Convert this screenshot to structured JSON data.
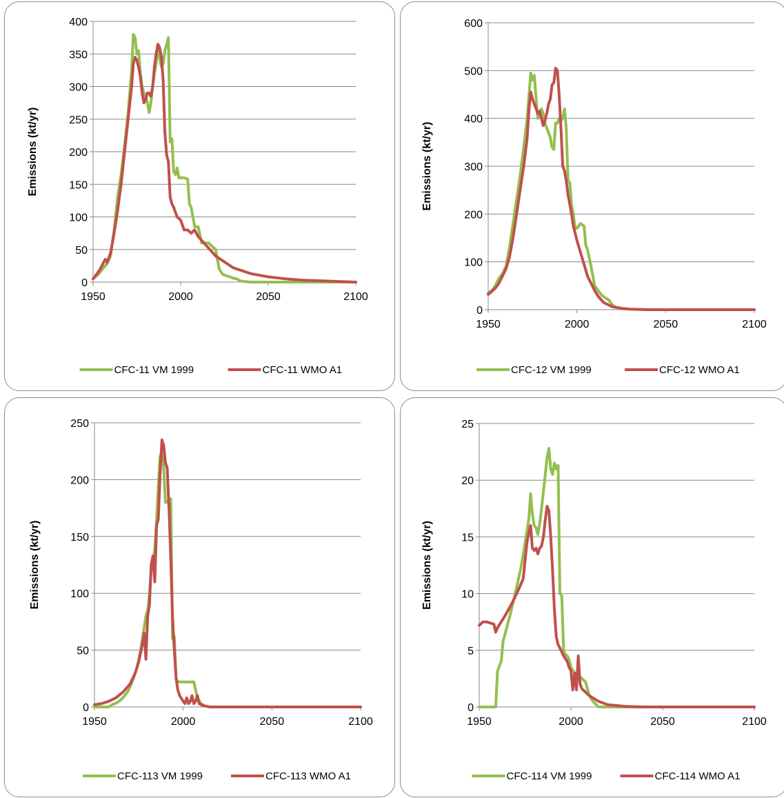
{
  "colors": {
    "green": "#93bf4f",
    "red": "#c0504d",
    "grid": "#878787",
    "axis": "#878787"
  },
  "chart_data": [
    {
      "type": "line",
      "ylabel": "Emissions (kt/yr)",
      "xlim": [
        1950,
        2100
      ],
      "ylim": [
        0,
        400
      ],
      "x_ticks": [
        "1950",
        "2000",
        "2050",
        "2100"
      ],
      "y_ticks": [
        "0",
        "50",
        "100",
        "150",
        "200",
        "250",
        "300",
        "350",
        "400"
      ],
      "grid": true,
      "legend": "bottom",
      "series": [
        {
          "name": "CFC-11 VM 1999",
          "color": "#93bf4f",
          "x": [
            1950,
            1953,
            1956,
            1958,
            1960,
            1962,
            1964,
            1966,
            1968,
            1970,
            1972,
            1973,
            1974,
            1975,
            1976,
            1977,
            1978,
            1979,
            1980,
            1981,
            1982,
            1983,
            1984,
            1985,
            1986,
            1987,
            1988,
            1989,
            1990,
            1991,
            1992,
            1993,
            1994,
            1995,
            1996,
            1997,
            1998,
            1999,
            2000,
            2002,
            2004,
            2005,
            2006,
            2008,
            2010,
            2012,
            2014,
            2016,
            2018,
            2020,
            2022,
            2024,
            2026,
            2028,
            2030,
            2032,
            2034,
            2036,
            2040,
            2060,
            2080,
            2100
          ],
          "y": [
            5,
            12,
            22,
            28,
            40,
            80,
            130,
            165,
            210,
            260,
            325,
            380,
            375,
            350,
            355,
            320,
            300,
            290,
            285,
            275,
            260,
            275,
            300,
            320,
            335,
            355,
            345,
            330,
            335,
            355,
            365,
            375,
            215,
            220,
            170,
            165,
            175,
            160,
            160,
            160,
            158,
            120,
            115,
            85,
            85,
            60,
            60,
            60,
            55,
            50,
            20,
            12,
            10,
            8,
            6,
            5,
            2,
            1,
            0,
            0,
            0,
            0
          ]
        },
        {
          "name": "CFC-11 WMO A1",
          "color": "#c0504d",
          "x": [
            1950,
            1952,
            1954,
            1956,
            1957,
            1958,
            1960,
            1962,
            1964,
            1966,
            1968,
            1970,
            1972,
            1973,
            1974,
            1975,
            1976,
            1977,
            1978,
            1979,
            1980,
            1981,
            1982,
            1983,
            1984,
            1985,
            1986,
            1987,
            1988,
            1989,
            1990,
            1991,
            1992,
            1993,
            1994,
            1995,
            1996,
            1998,
            2000,
            2002,
            2004,
            2006,
            2008,
            2010,
            2015,
            2020,
            2030,
            2040,
            2050,
            2060,
            2070,
            2080,
            2090,
            2100
          ],
          "y": [
            5,
            12,
            20,
            30,
            35,
            30,
            45,
            75,
            110,
            150,
            200,
            250,
            300,
            335,
            345,
            340,
            330,
            315,
            290,
            275,
            280,
            290,
            290,
            285,
            300,
            330,
            350,
            365,
            360,
            345,
            310,
            230,
            195,
            185,
            130,
            120,
            115,
            100,
            95,
            80,
            80,
            75,
            80,
            70,
            55,
            40,
            22,
            13,
            8,
            5,
            3,
            2,
            1,
            0
          ]
        }
      ]
    },
    {
      "type": "line",
      "ylabel": "Emissions (kt/yr)",
      "xlim": [
        1950,
        2100
      ],
      "ylim": [
        0,
        600
      ],
      "x_ticks": [
        "1950",
        "2000",
        "2050",
        "2100"
      ],
      "y_ticks": [
        "0",
        "100",
        "200",
        "300",
        "400",
        "500",
        "600"
      ],
      "grid": true,
      "legend": "bottom",
      "series": [
        {
          "name": "CFC-12 VM 1999",
          "color": "#93bf4f",
          "x": [
            1950,
            1952,
            1954,
            1956,
            1958,
            1960,
            1962,
            1964,
            1966,
            1968,
            1970,
            1972,
            1973,
            1974,
            1975,
            1976,
            1977,
            1978,
            1979,
            1980,
            1981,
            1982,
            1983,
            1984,
            1985,
            1986,
            1987,
            1988,
            1989,
            1990,
            1991,
            1992,
            1993,
            1994,
            1995,
            1996,
            1997,
            1998,
            1999,
            2000,
            2002,
            2004,
            2005,
            2006,
            2008,
            2010,
            2012,
            2014,
            2016,
            2018,
            2020,
            2022,
            2025,
            2030,
            2040,
            2060,
            2100
          ],
          "y": [
            35,
            40,
            50,
            65,
            75,
            90,
            130,
            180,
            230,
            280,
            340,
            400,
            450,
            495,
            480,
            490,
            440,
            400,
            410,
            420,
            410,
            390,
            380,
            370,
            360,
            340,
            335,
            390,
            390,
            400,
            395,
            400,
            420,
            380,
            270,
            265,
            220,
            200,
            170,
            170,
            180,
            175,
            135,
            125,
            90,
            50,
            40,
            30,
            25,
            20,
            10,
            5,
            2,
            1,
            0,
            0,
            0
          ]
        },
        {
          "name": "CFC-12 WMO A1",
          "color": "#c0504d",
          "x": [
            1950,
            1952,
            1954,
            1956,
            1958,
            1960,
            1962,
            1964,
            1966,
            1968,
            1970,
            1972,
            1973,
            1974,
            1975,
            1976,
            1977,
            1978,
            1979,
            1980,
            1981,
            1982,
            1983,
            1984,
            1985,
            1986,
            1987,
            1988,
            1989,
            1990,
            1991,
            1992,
            1993,
            1994,
            1995,
            1996,
            1997,
            1998,
            1999,
            2000,
            2002,
            2004,
            2006,
            2008,
            2010,
            2012,
            2015,
            2020,
            2025,
            2030,
            2040,
            2060,
            2100
          ],
          "y": [
            32,
            38,
            45,
            55,
            70,
            85,
            110,
            150,
            200,
            250,
            300,
            360,
            420,
            455,
            440,
            430,
            420,
            410,
            415,
            400,
            385,
            395,
            410,
            430,
            440,
            470,
            475,
            505,
            500,
            450,
            380,
            300,
            290,
            270,
            240,
            220,
            200,
            175,
            160,
            145,
            120,
            95,
            70,
            55,
            40,
            28,
            15,
            6,
            3,
            1,
            0,
            0,
            0
          ]
        }
      ]
    },
    {
      "type": "line",
      "ylabel": "Emissions (kt/yr)",
      "xlim": [
        1950,
        2100
      ],
      "ylim": [
        0,
        250
      ],
      "x_ticks": [
        "1950",
        "2000",
        "2050",
        "2100"
      ],
      "y_ticks": [
        "0",
        "50",
        "100",
        "150",
        "200",
        "250"
      ],
      "grid": true,
      "legend": "bottom",
      "series": [
        {
          "name": "CFC-113 VM 1999",
          "color": "#93bf4f",
          "x": [
            1950,
            1955,
            1958,
            1960,
            1963,
            1966,
            1969,
            1972,
            1974,
            1976,
            1978,
            1979,
            1980,
            1981,
            1982,
            1983,
            1984,
            1985,
            1986,
            1987,
            1988,
            1989,
            1990,
            1991,
            1992,
            1993,
            1994,
            1995,
            1996,
            1997,
            1998,
            2000,
            2002,
            2004,
            2006,
            2008,
            2010,
            2012,
            2015,
            2030,
            2060,
            2100
          ],
          "y": [
            0,
            0,
            0,
            2,
            4,
            8,
            14,
            25,
            35,
            50,
            70,
            80,
            85,
            100,
            120,
            125,
            140,
            165,
            195,
            220,
            225,
            210,
            180,
            180,
            183,
            183,
            60,
            62,
            25,
            22,
            22,
            22,
            22,
            22,
            22,
            8,
            3,
            1,
            0,
            0,
            0,
            0
          ]
        },
        {
          "name": "CFC-113 WMO A1",
          "color": "#c0504d",
          "x": [
            1950,
            1954,
            1958,
            1962,
            1966,
            1970,
            1973,
            1975,
            1977,
            1978,
            1979,
            1980,
            1981,
            1982,
            1983,
            1984,
            1985,
            1986,
            1987,
            1988,
            1989,
            1990,
            1991,
            1992,
            1993,
            1994,
            1995,
            1996,
            1997,
            1998,
            2000,
            2001,
            2002,
            2003,
            2004,
            2005,
            2006,
            2007,
            2008,
            2009,
            2010,
            2012,
            2015,
            2030,
            2060,
            2100
          ],
          "y": [
            2,
            3,
            5,
            8,
            13,
            20,
            30,
            40,
            55,
            65,
            42,
            80,
            90,
            125,
            133,
            110,
            160,
            165,
            205,
            235,
            230,
            215,
            210,
            175,
            130,
            80,
            50,
            25,
            15,
            10,
            5,
            3,
            8,
            3,
            5,
            10,
            3,
            5,
            10,
            3,
            2,
            1,
            0,
            0,
            0,
            0
          ]
        }
      ]
    },
    {
      "type": "line",
      "ylabel": "Emissions (kt/yr)",
      "xlim": [
        1950,
        2100
      ],
      "ylim": [
        0,
        25
      ],
      "x_ticks": [
        "1950",
        "2000",
        "2050",
        "2100"
      ],
      "y_ticks": [
        "0",
        "5",
        "10",
        "15",
        "20",
        "25"
      ],
      "grid": true,
      "legend": "bottom",
      "series": [
        {
          "name": "CFC-114 VM 1999",
          "color": "#93bf4f",
          "x": [
            1950,
            1955,
            1958,
            1959,
            1960,
            1961,
            1962,
            1963,
            1965,
            1967,
            1969,
            1971,
            1973,
            1975,
            1976,
            1977,
            1978,
            1979,
            1980,
            1981,
            1982,
            1983,
            1984,
            1985,
            1986,
            1987,
            1988,
            1989,
            1990,
            1991,
            1992,
            1993,
            1994,
            1995,
            1996,
            1997,
            1998,
            1999,
            2000,
            2002,
            2004,
            2006,
            2008,
            2010,
            2012,
            2015,
            2030,
            2060,
            2100
          ],
          "y": [
            0,
            0,
            0,
            0,
            3.2,
            3.6,
            4.0,
            5.8,
            7.0,
            8.2,
            9.6,
            11.0,
            12.5,
            14.5,
            15.5,
            16.5,
            18.8,
            17.0,
            16.0,
            15.8,
            15.2,
            16.2,
            17.5,
            19.0,
            20.5,
            22.0,
            22.8,
            21.0,
            20.5,
            21.5,
            21.0,
            21.3,
            10.0,
            9.8,
            5.0,
            4.6,
            4.5,
            4.2,
            3.5,
            3.0,
            2.8,
            2.5,
            2.2,
            1.0,
            0.5,
            0,
            0,
            0,
            0
          ]
        },
        {
          "name": "CFC-114 WMO A1",
          "color": "#c0504d",
          "x": [
            1950,
            1952,
            1954,
            1956,
            1958,
            1959,
            1960,
            1962,
            1965,
            1968,
            1971,
            1974,
            1976,
            1977,
            1978,
            1979,
            1980,
            1981,
            1982,
            1983,
            1984,
            1985,
            1986,
            1987,
            1988,
            1989,
            1990,
            1991,
            1992,
            1993,
            1994,
            1996,
            1998,
            1999,
            2000,
            2001,
            2002,
            2003,
            2004,
            2005,
            2006,
            2008,
            2010,
            2015,
            2020,
            2030,
            2040,
            2060,
            2100
          ],
          "y": [
            7.2,
            7.5,
            7.5,
            7.4,
            7.3,
            6.6,
            7.0,
            7.5,
            8.3,
            9.2,
            10.2,
            11.3,
            14.5,
            15.3,
            16.0,
            14.0,
            13.8,
            14.0,
            13.5,
            14.0,
            14.2,
            15.0,
            16.5,
            17.7,
            17.3,
            15.0,
            12.0,
            8.5,
            6.2,
            5.5,
            5.2,
            4.5,
            4.0,
            3.5,
            3.2,
            1.5,
            3.0,
            1.5,
            4.5,
            2.0,
            1.6,
            1.3,
            1.0,
            0.5,
            0.2,
            0.05,
            0,
            0,
            0
          ]
        }
      ]
    }
  ]
}
